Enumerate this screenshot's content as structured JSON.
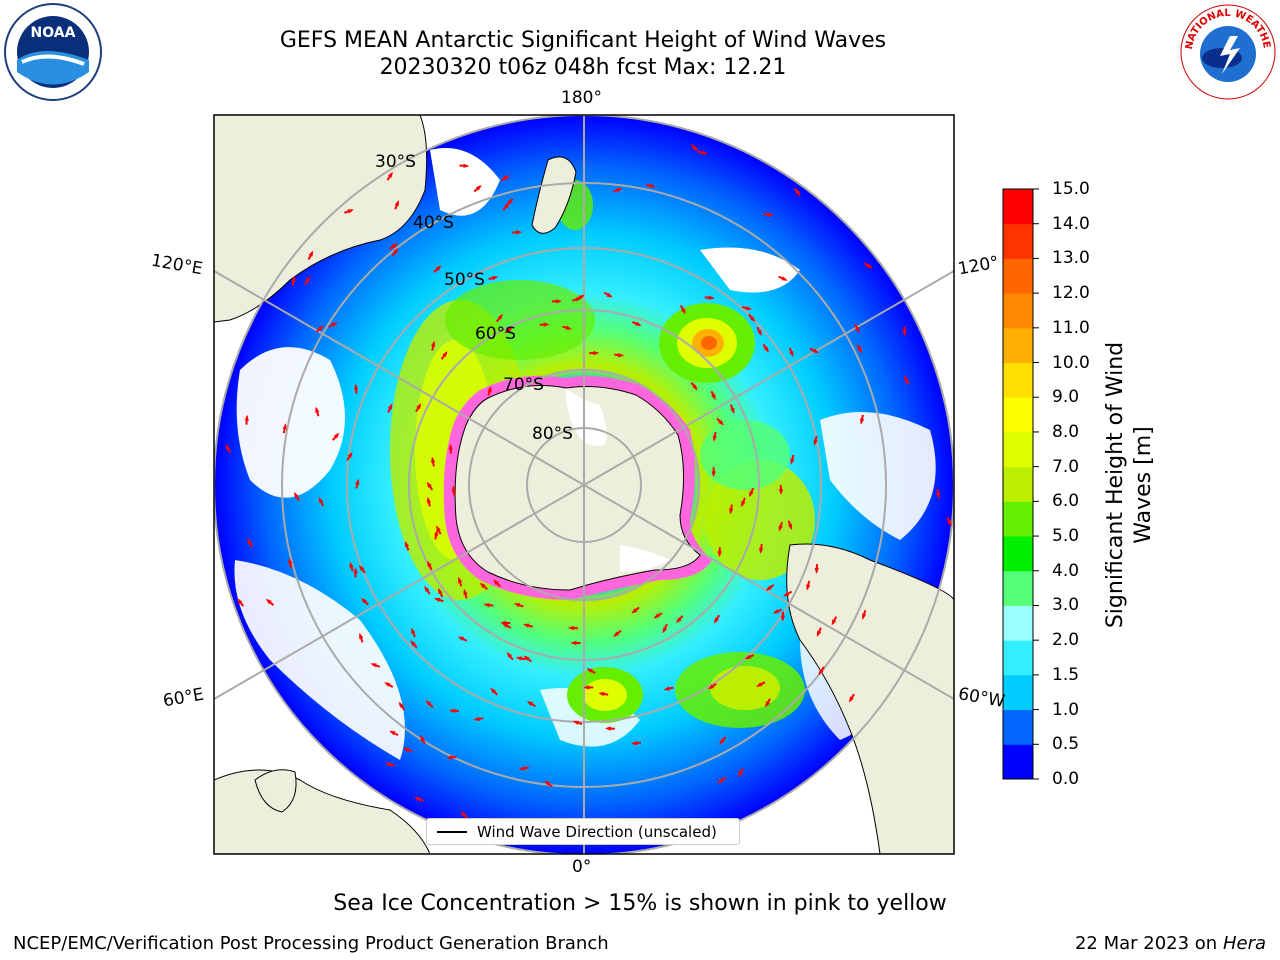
{
  "title": {
    "line1": "GEFS MEAN Antarctic Significant Height of Wind Waves",
    "line2": "20230320 t06z 048h fcst   Max: 12.21"
  },
  "logos": {
    "noaa": {
      "text": "NOAA"
    },
    "nws": {
      "text": "NATIONAL WEATHER SERVICE"
    }
  },
  "map": {
    "projection": "south-polar-stereographic",
    "longitude_labels": {
      "top": "180°",
      "bottom": "0°",
      "upper_left": "120°E",
      "upper_right": "120°",
      "lower_left": "60°E",
      "lower_right": "60°W"
    },
    "latitude_labels": [
      "30°S",
      "40°S",
      "50°S",
      "60°S",
      "70°S",
      "80°S"
    ],
    "legend": {
      "label": "Wind Wave Direction (unscaled)"
    },
    "max_feature_value": 12.21,
    "land_color": "#eeeedc",
    "arrow_color": "#ff0000"
  },
  "colorbar": {
    "title_line1": "Significant Height of Wind",
    "title_line2": "Waves [m]",
    "ticks": [
      "0.0",
      "0.5",
      "1.0",
      "1.5",
      "2.0",
      "3.0",
      "4.0",
      "5.0",
      "6.0",
      "7.0",
      "8.0",
      "9.0",
      "10.0",
      "11.0",
      "12.0",
      "13.0",
      "14.0",
      "15.0"
    ],
    "colors": [
      "#0000ff",
      "#0066ff",
      "#00ccff",
      "#33eeff",
      "#99ffff",
      "#55ff77",
      "#00ee00",
      "#66ee00",
      "#bbee00",
      "#ddff00",
      "#ffff00",
      "#ffe000",
      "#ffb000",
      "#ff8800",
      "#ff6600",
      "#ff3300",
      "#ff0000"
    ]
  },
  "footer": {
    "note": "Sea Ice Concentration > 15% is shown in pink to yellow",
    "credit": "NCEP/EMC/Verification Post Processing Product Generation Branch",
    "date": "22 Mar 2023 on",
    "host": "Hera"
  }
}
